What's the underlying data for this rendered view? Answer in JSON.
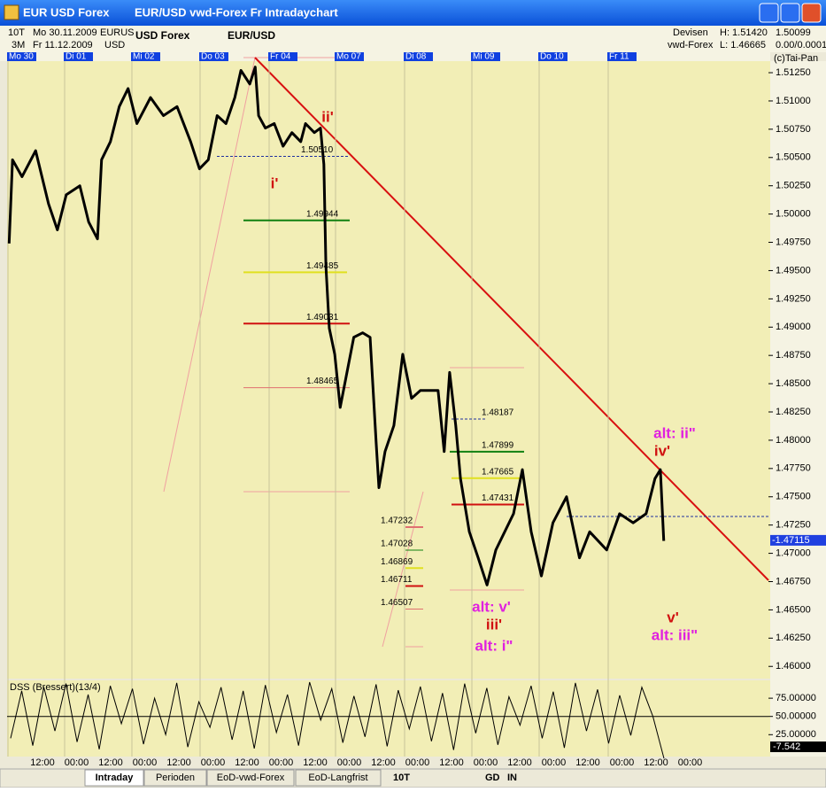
{
  "window": {
    "title": "EUR USD Forex",
    "subtitle": "EUR/USD vwd-Forex Fr Intradaychart"
  },
  "info": {
    "row1": [
      "10T",
      "Mo 30.11.2009",
      "EURUS",
      "USD Forex",
      "EUR/USD"
    ],
    "row2": [
      "3M",
      "Fr 11.12.2009",
      "USD"
    ],
    "right": [
      "Devisen",
      "H: 1.51420",
      "vwd-Forex",
      "L: 1.46665"
    ],
    "scale": [
      "1.50099",
      "0.00/0.0001",
      "(c)Tai-Pan"
    ]
  },
  "days": [
    "Mo 30",
    "Di 01",
    "Mi 02",
    "Do 03",
    "Fr 04",
    "Mo 07",
    "Di 08",
    "Mi 09",
    "Do 10",
    "Fr 11"
  ],
  "chart_data": {
    "type": "line",
    "color": "#000000",
    "x": [
      0.03,
      0.08,
      0.22,
      0.42,
      0.61,
      0.74,
      0.87,
      1.07,
      1.2,
      1.33,
      1.39,
      1.52,
      1.65,
      1.78,
      1.91,
      2.11,
      2.3,
      2.5,
      2.7,
      2.83,
      2.96,
      3.09,
      3.22,
      3.35,
      3.44,
      3.57,
      3.65,
      3.7,
      3.8,
      3.93,
      4.06,
      4.19,
      4.32,
      4.39,
      4.52,
      4.61,
      4.66,
      4.69,
      4.74,
      4.82,
      4.9,
      5.0,
      5.1,
      5.23,
      5.34,
      5.43,
      5.47,
      5.56,
      5.69,
      5.82,
      5.95,
      6.08,
      6.21,
      6.34,
      6.43,
      6.51,
      6.6,
      6.67,
      6.8,
      6.93,
      7.06,
      7.19,
      7.32,
      7.45,
      7.58,
      7.71,
      7.86,
      8.03,
      8.23,
      8.42,
      8.57,
      8.82,
      9.01,
      9.21,
      9.4,
      9.53,
      9.61,
      9.66
    ],
    "values": [
      1.4974,
      1.5048,
      1.5033,
      1.5056,
      1.5009,
      1.4986,
      1.5017,
      1.5025,
      1.4993,
      1.4978,
      1.5048,
      1.5064,
      1.5095,
      1.5111,
      1.508,
      1.5103,
      1.5087,
      1.5095,
      1.5064,
      1.504,
      1.5048,
      1.5087,
      1.508,
      1.5103,
      1.5127,
      1.5115,
      1.513,
      1.5087,
      1.5076,
      1.508,
      1.506,
      1.5072,
      1.5064,
      1.508,
      1.5072,
      1.5076,
      1.5044,
      1.4954,
      1.4899,
      1.4876,
      1.4829,
      1.486,
      1.4891,
      1.4895,
      1.4891,
      1.4797,
      1.4758,
      1.479,
      1.4813,
      1.4876,
      1.4837,
      1.4844,
      1.4844,
      1.4844,
      1.479,
      1.486,
      1.4813,
      1.4766,
      1.4719,
      1.4696,
      1.4672,
      1.4703,
      1.4719,
      1.4735,
      1.4774,
      1.4719,
      1.468,
      1.4727,
      1.475,
      1.4696,
      1.4719,
      1.4703,
      1.4735,
      1.4727,
      1.4735,
      1.4766,
      1.4774,
      1.4711
    ],
    "xlim": [
      0,
      11.2
    ],
    "ylim": [
      1.459,
      1.5136
    ],
    "yticks": [
      {
        "value": 1.5125,
        "label": "1.51250"
      },
      {
        "value": 1.51,
        "label": "1.51000"
      },
      {
        "value": 1.5075,
        "label": "1.50750"
      },
      {
        "value": 1.505,
        "label": "1.50500"
      },
      {
        "value": 1.5025,
        "label": "1.50250"
      },
      {
        "value": 1.5,
        "label": "1.50000"
      },
      {
        "value": 1.4975,
        "label": "1.49750"
      },
      {
        "value": 1.495,
        "label": "1.49500"
      },
      {
        "value": 1.4925,
        "label": "1.49250"
      },
      {
        "value": 1.49,
        "label": "1.49000"
      },
      {
        "value": 1.4875,
        "label": "1.48750"
      },
      {
        "value": 1.485,
        "label": "1.48500"
      },
      {
        "value": 1.4825,
        "label": "1.48250"
      },
      {
        "value": 1.48,
        "label": "1.48000"
      },
      {
        "value": 1.4775,
        "label": "1.47750"
      },
      {
        "value": 1.475,
        "label": "1.47500"
      },
      {
        "value": 1.4725,
        "label": "1.47250"
      },
      {
        "value": 1.47,
        "label": "1.47000"
      },
      {
        "value": 1.4675,
        "label": "1.46750"
      },
      {
        "value": 1.465,
        "label": "1.46500"
      },
      {
        "value": 1.4625,
        "label": "1.46250"
      },
      {
        "value": 1.46,
        "label": "1.46000"
      }
    ],
    "last_price": {
      "value": 1.47115,
      "label": "-1.47115"
    },
    "levels": [
      {
        "value": 1.5051,
        "label": "1.50510",
        "color": "#2030a0"
      },
      {
        "value": 1.49944,
        "label": "1.49944",
        "color": "#108010"
      },
      {
        "value": 1.49485,
        "label": "1.49485",
        "color": "#e0e020"
      },
      {
        "value": 1.49031,
        "label": "1.49031",
        "color": "#d01010"
      },
      {
        "value": 1.48465,
        "label": "1.48465",
        "color": "#e07070"
      },
      {
        "value": 1.48187,
        "label": "1.48187",
        "color": "#2030a0"
      },
      {
        "value": 1.47899,
        "label": "1.47899",
        "color": "#108010"
      },
      {
        "value": 1.47665,
        "label": "1.47665",
        "color": "#e0e020"
      },
      {
        "value": 1.47431,
        "label": "1.47431",
        "color": "#d01010"
      },
      {
        "value": 1.47232,
        "label": "1.47232",
        "color": "#e07070"
      },
      {
        "value": 1.47028,
        "label": "1.47028",
        "color": "#108010"
      },
      {
        "value": 1.46869,
        "label": "1.46869",
        "color": "#e0e020"
      },
      {
        "value": 1.46711,
        "label": "1.46711",
        "color": "#d01010"
      },
      {
        "value": 1.46507,
        "label": "1.46507",
        "color": "#e07070"
      }
    ],
    "annotations": [
      {
        "text": "ii'",
        "color": "#d01010"
      },
      {
        "text": "i'",
        "color": "#d01010"
      },
      {
        "text": "alt: ii\"",
        "color": "#e020e0"
      },
      {
        "text": "iv'",
        "color": "#d01010"
      },
      {
        "text": "alt: v'",
        "color": "#e020e0"
      },
      {
        "text": "iii'",
        "color": "#d01010"
      },
      {
        "text": "alt: i\"",
        "color": "#e020e0"
      },
      {
        "text": "v'",
        "color": "#d01010"
      },
      {
        "text": "alt: iii\"",
        "color": "#e020e0"
      }
    ]
  },
  "dss": {
    "title": "DSS (Bressert)(13/4)",
    "ylim": [
      -5,
      97
    ],
    "yticks": [
      {
        "value": 75,
        "label": "75.00000"
      },
      {
        "value": 50,
        "label": "50.00000"
      },
      {
        "value": 25,
        "label": "25.00000"
      }
    ],
    "values": [
      20,
      85,
      10,
      90,
      30,
      95,
      15,
      80,
      5,
      92,
      40,
      88,
      12,
      75,
      25,
      96,
      8,
      70,
      35,
      90,
      18,
      85,
      6,
      93,
      28,
      80,
      10,
      97,
      45,
      88,
      14,
      78,
      22,
      94,
      9,
      86,
      33,
      91,
      16,
      82,
      4,
      95,
      27,
      89,
      11,
      77,
      38,
      92,
      20,
      84,
      7,
      96,
      30,
      87,
      13,
      79,
      24,
      90,
      50,
      -7.542
    ],
    "last": {
      "value": -7.542,
      "label": "-7.542"
    }
  },
  "time_labels": [
    "12:00",
    "00:00",
    "12:00",
    "00:00",
    "12:00",
    "00:00",
    "12:00",
    "00:00",
    "12:00",
    "00:00",
    "12:00",
    "00:00",
    "12:00",
    "00:00",
    "12:00",
    "00:00",
    "12:00",
    "00:00",
    "12:00",
    "00:00"
  ],
  "tabs": [
    "Intraday",
    "Perioden",
    "EoD-vwd-Forex",
    "EoD-Langfrist"
  ],
  "toolbar": [
    "10T",
    "GD",
    "IN"
  ]
}
